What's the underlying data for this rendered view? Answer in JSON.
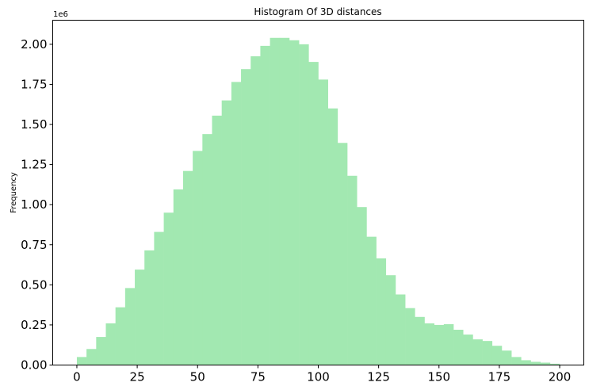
{
  "chart_data": {
    "type": "bar",
    "title": "Histogram Of 3D distances",
    "xlabel": "",
    "ylabel": "Frequency",
    "y_offset_label": "1e6",
    "bar_color": "#a2e8b1",
    "grid": false,
    "xlim": [
      -10,
      210
    ],
    "ylim": [
      0,
      2150000
    ],
    "x_ticks": [
      0,
      25,
      50,
      75,
      100,
      125,
      150,
      175,
      200
    ],
    "x_tick_labels": [
      "0",
      "25",
      "50",
      "75",
      "100",
      "125",
      "150",
      "175",
      "200"
    ],
    "y_ticks": [
      0,
      250000,
      500000,
      750000,
      1000000,
      1250000,
      1500000,
      1750000,
      2000000
    ],
    "y_tick_labels": [
      "0.00",
      "0.25",
      "0.50",
      "0.75",
      "1.00",
      "1.25",
      "1.50",
      "1.75",
      "2.00"
    ],
    "bin_start": 0,
    "bin_width": 4,
    "values": [
      50000,
      100000,
      175000,
      260000,
      360000,
      480000,
      595000,
      715000,
      830000,
      950000,
      1095000,
      1210000,
      1335000,
      1440000,
      1555000,
      1650000,
      1765000,
      1845000,
      1925000,
      1990000,
      2040000,
      2040000,
      2025000,
      2000000,
      1890000,
      1780000,
      1600000,
      1385000,
      1180000,
      985000,
      800000,
      665000,
      560000,
      440000,
      355000,
      300000,
      260000,
      250000,
      255000,
      220000,
      190000,
      160000,
      150000,
      120000,
      90000,
      50000,
      30000,
      20000,
      15000,
      8000
    ]
  }
}
